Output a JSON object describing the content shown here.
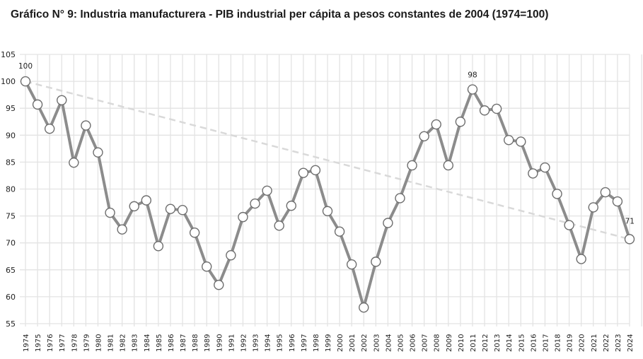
{
  "chart_data": {
    "type": "line",
    "title": "Gráfico N° 9: Industria manufacturera - PIB industrial per cápita a pesos constantes de 2004 (1974=100)",
    "xlabel": "",
    "ylabel": "",
    "ylim": [
      55,
      105
    ],
    "yticks": [
      55,
      60,
      65,
      70,
      75,
      80,
      85,
      90,
      95,
      100,
      105
    ],
    "grid": true,
    "categories": [
      "1974",
      "1975",
      "1976",
      "1977",
      "1978",
      "1979",
      "1980",
      "1981",
      "1982",
      "1983",
      "1984",
      "1985",
      "1986",
      "1987",
      "1988",
      "1989",
      "1990",
      "1991",
      "1992",
      "1993",
      "1994",
      "1995",
      "1996",
      "1997",
      "1998",
      "1999",
      "2000",
      "2001",
      "2002",
      "2003",
      "2004",
      "2005",
      "2006",
      "2007",
      "2008",
      "2009",
      "2010",
      "2011",
      "2012",
      "2013",
      "2014",
      "2015",
      "2016",
      "2017",
      "2018",
      "2019",
      "2020",
      "2021",
      "2022",
      "2023",
      "2024"
    ],
    "series": [
      {
        "name": "PIB industrial per cápita",
        "color": "#8c8c8c",
        "values": [
          100,
          95.7,
          91.2,
          96.5,
          84.9,
          91.8,
          86.8,
          75.6,
          72.5,
          76.8,
          77.9,
          69.4,
          76.3,
          76.1,
          71.9,
          65.6,
          62.2,
          67.7,
          74.8,
          77.3,
          79.7,
          73.2,
          76.9,
          83.0,
          83.5,
          75.9,
          72.1,
          66.0,
          58.0,
          66.5,
          73.7,
          78.3,
          84.4,
          89.8,
          92.0,
          84.4,
          92.5,
          98.5,
          94.6,
          94.9,
          89.1,
          88.8,
          82.9,
          84.0,
          79.1,
          73.3,
          67.0,
          76.6,
          79.4,
          77.7,
          70.7
        ]
      },
      {
        "name": "Tendencia",
        "color": "#d9d9d9",
        "style": "dashed",
        "values_endpoints": [
          100,
          70.7
        ]
      }
    ],
    "annotations": [
      {
        "category": "1974",
        "text": "100"
      },
      {
        "category": "2011",
        "text": "98"
      },
      {
        "category": "2024",
        "text": "71"
      }
    ]
  }
}
